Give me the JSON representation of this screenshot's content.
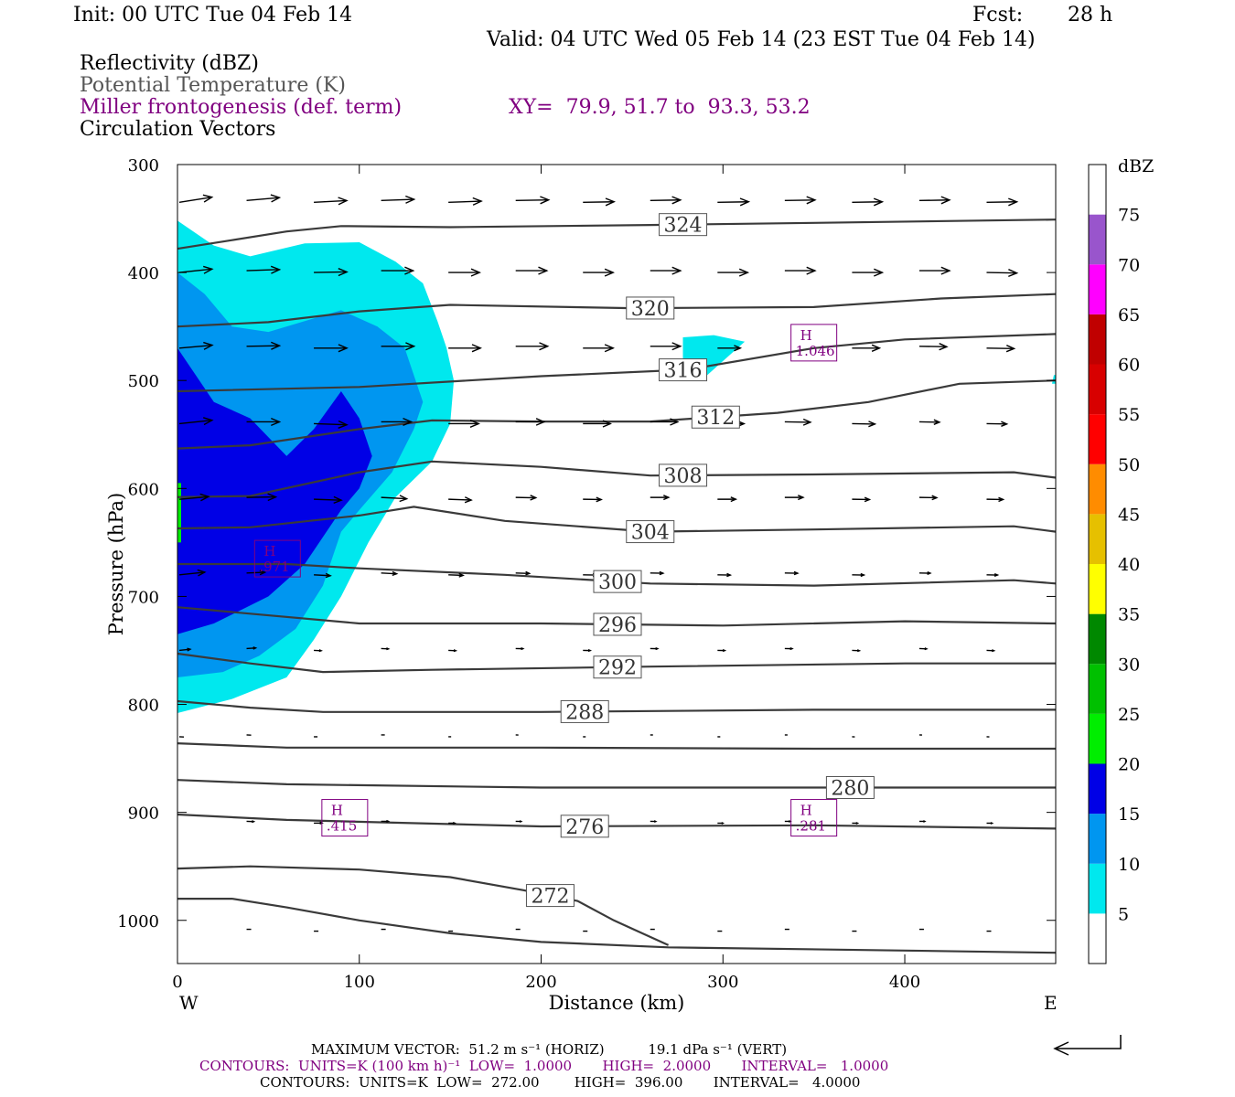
{
  "header": {
    "init": "Init: 00 UTC Tue 04 Feb 14",
    "fcst_label": "Fcst:",
    "fcst_value": "28 h",
    "valid": "Valid: 04 UTC Wed 05 Feb 14 (23 EST Tue 04 Feb 14)",
    "field1": "Reflectivity (dBZ)",
    "field2": "Potential Temperature (K)",
    "field3": "Miller frontogenesis (def. term)",
    "xy": "XY=  79.9, 51.7 to  93.3, 53.2",
    "field4": "Circulation Vectors"
  },
  "footer": {
    "max_vector": "MAXIMUM VECTOR:  51.2 m s⁻¹ (HORIZ)          19.1 dPa s⁻¹ (VERT)",
    "contours1": "CONTOURS:  UNITS=K (100 km h)⁻¹  LOW=  1.0000       HIGH=  2.0000       INTERVAL=   1.0000",
    "contours2": "CONTOURS:  UNITS=K  LOW=  272.00        HIGH=  396.00       INTERVAL=   4.0000"
  },
  "colors": {
    "cyan": "#00e8ee",
    "lightblue": "#0096f0",
    "blue": "#0000e6",
    "contour": "#3a3a3a",
    "purple": "#800080"
  },
  "chart_data": {
    "type": "contour-cross-section",
    "xlabel": "Distance (km)",
    "ylabel": "Pressure (hPa)",
    "xlim": [
      0,
      483
    ],
    "ylim": [
      300,
      1040
    ],
    "x_ticks": [
      0,
      100,
      200,
      300,
      400
    ],
    "y_ticks": [
      300,
      400,
      500,
      600,
      700,
      800,
      900,
      1000
    ],
    "left_end_label": "W",
    "right_end_label": "E",
    "colorbar": {
      "unit": "dBZ",
      "ticks": [
        5,
        10,
        15,
        20,
        25,
        30,
        35,
        40,
        45,
        50,
        55,
        60,
        65,
        70,
        75
      ],
      "colors": [
        "#00e8ee",
        "#0096f0",
        "#0000e6",
        "#00ee00",
        "#00c000",
        "#008800",
        "#ffff00",
        "#e6c000",
        "#ff8c00",
        "#ff0000",
        "#d80000",
        "#c00000",
        "#ff00ff",
        "#9955cc",
        "#ffffff"
      ]
    },
    "theta_contours": [
      {
        "value": 324,
        "points": [
          [
            0,
            378
          ],
          [
            30,
            370
          ],
          [
            60,
            362
          ],
          [
            90,
            357
          ],
          [
            150,
            358
          ],
          [
            260,
            356
          ],
          [
            350,
            354
          ],
          [
            483,
            351
          ]
        ]
      },
      {
        "value": 320,
        "points": [
          [
            0,
            450
          ],
          [
            50,
            446
          ],
          [
            100,
            436
          ],
          [
            150,
            430
          ],
          [
            250,
            433
          ],
          [
            350,
            432
          ],
          [
            420,
            424
          ],
          [
            483,
            420
          ]
        ]
      },
      {
        "value": 316,
        "points": [
          [
            0,
            510
          ],
          [
            100,
            506
          ],
          [
            200,
            496
          ],
          [
            280,
            490
          ],
          [
            350,
            470
          ],
          [
            400,
            462
          ],
          [
            483,
            457
          ]
        ]
      },
      {
        "value": 312,
        "points": [
          [
            0,
            563
          ],
          [
            40,
            560
          ],
          [
            100,
            545
          ],
          [
            140,
            537
          ],
          [
            200,
            538
          ],
          [
            260,
            538
          ],
          [
            330,
            530
          ],
          [
            380,
            520
          ],
          [
            430,
            503
          ],
          [
            483,
            500
          ]
        ]
      },
      {
        "value": 308,
        "points": [
          [
            0,
            608
          ],
          [
            40,
            607
          ],
          [
            100,
            585
          ],
          [
            140,
            575
          ],
          [
            200,
            580
          ],
          [
            260,
            588
          ],
          [
            350,
            587
          ],
          [
            460,
            585
          ],
          [
            483,
            590
          ]
        ]
      },
      {
        "value": 304,
        "points": [
          [
            0,
            637
          ],
          [
            40,
            636
          ],
          [
            100,
            625
          ],
          [
            130,
            617
          ],
          [
            180,
            630
          ],
          [
            260,
            640
          ],
          [
            350,
            638
          ],
          [
            460,
            635
          ],
          [
            483,
            640
          ]
        ]
      },
      {
        "value": 300,
        "points": [
          [
            0,
            670
          ],
          [
            60,
            670
          ],
          [
            100,
            674
          ],
          [
            180,
            680
          ],
          [
            260,
            688
          ],
          [
            350,
            690
          ],
          [
            460,
            685
          ],
          [
            483,
            688
          ]
        ]
      },
      {
        "value": 296,
        "points": [
          [
            0,
            710
          ],
          [
            40,
            716
          ],
          [
            100,
            725
          ],
          [
            200,
            725
          ],
          [
            300,
            727
          ],
          [
            400,
            723
          ],
          [
            483,
            725
          ]
        ]
      },
      {
        "value": 292,
        "points": [
          [
            0,
            753
          ],
          [
            40,
            762
          ],
          [
            80,
            770
          ],
          [
            140,
            768
          ],
          [
            260,
            765
          ],
          [
            400,
            762
          ],
          [
            483,
            762
          ]
        ]
      },
      {
        "value": 288,
        "points": [
          [
            0,
            797
          ],
          [
            40,
            803
          ],
          [
            80,
            807
          ],
          [
            200,
            807
          ],
          [
            350,
            805
          ],
          [
            483,
            805
          ]
        ]
      },
      {
        "value": 284,
        "points": [
          [
            0,
            836
          ],
          [
            60,
            840
          ],
          [
            200,
            840
          ],
          [
            350,
            841
          ],
          [
            483,
            841
          ]
        ]
      },
      {
        "value": 280,
        "points": [
          [
            0,
            870
          ],
          [
            60,
            874
          ],
          [
            200,
            877
          ],
          [
            350,
            877
          ],
          [
            483,
            877
          ]
        ]
      },
      {
        "value": 276,
        "points": [
          [
            0,
            902
          ],
          [
            60,
            907
          ],
          [
            200,
            913
          ],
          [
            350,
            912
          ],
          [
            483,
            915
          ]
        ]
      },
      {
        "value": 272,
        "points": [
          [
            0,
            952
          ],
          [
            40,
            950
          ],
          [
            100,
            953
          ],
          [
            150,
            960
          ],
          [
            190,
            972
          ],
          [
            220,
            982
          ],
          [
            240,
            1000
          ],
          [
            270,
            1023
          ]
        ]
      },
      {
        "value": 272,
        "points": [
          [
            0,
            980
          ],
          [
            30,
            980
          ],
          [
            60,
            988
          ],
          [
            100,
            1000
          ],
          [
            150,
            1012
          ],
          [
            200,
            1020
          ],
          [
            270,
            1025
          ],
          [
            400,
            1028
          ],
          [
            483,
            1030
          ]
        ]
      }
    ],
    "reflectivity_regions": [
      {
        "dbz": 5,
        "polygon": [
          [
            0,
            352
          ],
          [
            20,
            375
          ],
          [
            40,
            385
          ],
          [
            70,
            373
          ],
          [
            100,
            372
          ],
          [
            120,
            390
          ],
          [
            135,
            410
          ],
          [
            143,
            445
          ],
          [
            148,
            470
          ],
          [
            152,
            500
          ],
          [
            150,
            540
          ],
          [
            140,
            575
          ],
          [
            120,
            608
          ],
          [
            105,
            650
          ],
          [
            90,
            700
          ],
          [
            75,
            740
          ],
          [
            60,
            775
          ],
          [
            30,
            795
          ],
          [
            0,
            808
          ]
        ]
      },
      {
        "dbz": 10,
        "polygon": [
          [
            0,
            400
          ],
          [
            15,
            420
          ],
          [
            30,
            450
          ],
          [
            50,
            455
          ],
          [
            70,
            445
          ],
          [
            90,
            435
          ],
          [
            110,
            450
          ],
          [
            125,
            470
          ],
          [
            135,
            520
          ],
          [
            130,
            545
          ],
          [
            118,
            585
          ],
          [
            100,
            620
          ],
          [
            90,
            640
          ],
          [
            80,
            690
          ],
          [
            65,
            730
          ],
          [
            45,
            755
          ],
          [
            25,
            770
          ],
          [
            0,
            775
          ]
        ]
      },
      {
        "dbz": 15,
        "polygon": [
          [
            0,
            470
          ],
          [
            10,
            495
          ],
          [
            20,
            520
          ],
          [
            40,
            535
          ],
          [
            60,
            570
          ],
          [
            75,
            545
          ],
          [
            90,
            510
          ],
          [
            100,
            535
          ],
          [
            107,
            570
          ],
          [
            100,
            600
          ],
          [
            90,
            620
          ],
          [
            70,
            670
          ],
          [
            50,
            700
          ],
          [
            20,
            725
          ],
          [
            0,
            735
          ]
        ]
      },
      {
        "dbz": 20,
        "polygon": [
          [
            0,
            595
          ],
          [
            2,
            595
          ],
          [
            2,
            650
          ],
          [
            0,
            650
          ]
        ]
      },
      {
        "dbz": 5,
        "polygon": [
          [
            278,
            460
          ],
          [
            295,
            458
          ],
          [
            312,
            464
          ],
          [
            304,
            476
          ],
          [
            290,
            497
          ],
          [
            278,
            498
          ]
        ]
      },
      {
        "dbz": 5,
        "polygon": [
          [
            482,
            495
          ],
          [
            483,
            495
          ],
          [
            483,
            503
          ],
          [
            481,
            503
          ]
        ]
      }
    ],
    "extrema_boxes": [
      {
        "label": "H",
        "value": ".971",
        "x": 55,
        "p": 665
      },
      {
        "label": "H",
        "value": "1.046",
        "x": 350,
        "p": 465
      },
      {
        "label": "H",
        "value": ".415",
        "x": 92,
        "p": 905
      },
      {
        "label": "H",
        "value": ".281",
        "x": 350,
        "p": 905
      }
    ],
    "vectors": {
      "x": [
        0,
        37,
        74,
        111,
        148,
        185,
        222,
        259,
        296,
        333,
        370,
        407,
        444,
        481
      ],
      "rows": [
        {
          "p": 335,
          "len": [
            36,
            36,
            36,
            36,
            36,
            36,
            34,
            33,
            34,
            33,
            33,
            33,
            33,
            33
          ],
          "tilt": [
            -9,
            -5,
            -3,
            -2,
            -2,
            -1,
            -1,
            -1,
            -1,
            -1,
            -1,
            -1,
            -1,
            -1
          ]
        },
        {
          "p": 400,
          "len": [
            36,
            36,
            36,
            35,
            34,
            34,
            33,
            33,
            33,
            33,
            33,
            33,
            33,
            33
          ],
          "tilt": [
            -6,
            -2,
            -1,
            0,
            0,
            0,
            0,
            0,
            0,
            0,
            0,
            0,
            1,
            1
          ]
        },
        {
          "p": 470,
          "len": [
            36,
            36,
            36,
            36,
            35,
            35,
            33,
            33,
            25,
            0,
            30,
            30,
            30,
            27
          ],
          "tilt": [
            -5,
            -1,
            0,
            0,
            0,
            0,
            0,
            0,
            0,
            0,
            0,
            1,
            1,
            1
          ]
        },
        {
          "p": 540,
          "len": [
            36,
            36,
            36,
            33,
            33,
            31,
            30,
            30,
            29,
            28,
            25,
            22,
            22,
            22
          ],
          "tilt": [
            -6,
            0,
            2,
            0,
            0,
            0,
            0,
            0,
            0,
            1,
            1,
            1,
            1,
            1
          ]
        },
        {
          "p": 610,
          "len": [
            32,
            32,
            30,
            28,
            25,
            22,
            20,
            20,
            20,
            20,
            19,
            19,
            18,
            18
          ],
          "tilt": [
            -5,
            -1,
            2,
            3,
            2,
            1,
            1,
            0,
            0,
            0,
            1,
            1,
            1,
            0
          ]
        },
        {
          "p": 680,
          "len": [
            28,
            20,
            18,
            17,
            16,
            15,
            15,
            14,
            14,
            14,
            13,
            12,
            12,
            12
          ],
          "tilt": [
            -6,
            -2,
            3,
            3,
            2,
            2,
            1,
            1,
            1,
            1,
            1,
            1,
            1,
            1
          ]
        },
        {
          "p": 750,
          "len": [
            12,
            10,
            8,
            8,
            8,
            8,
            8,
            8,
            8,
            8,
            8,
            8,
            8,
            8
          ],
          "tilt": [
            -6,
            -4,
            2,
            2,
            2,
            1,
            1,
            1,
            1,
            1,
            2,
            2,
            2,
            2
          ]
        },
        {
          "p": 830,
          "len": [
            5,
            5,
            4,
            4,
            3,
            3,
            3,
            3,
            3,
            3,
            3,
            3,
            3,
            3
          ],
          "tilt": [
            3,
            2,
            0,
            -1,
            -1,
            1,
            0,
            0,
            0,
            0,
            1,
            2,
            2,
            2
          ]
        },
        {
          "p": 910,
          "len": [
            0,
            8,
            9,
            8,
            7,
            6,
            6,
            6,
            6,
            6,
            6,
            6,
            6,
            5
          ],
          "tilt": [
            0,
            2,
            -1,
            0,
            0,
            1,
            1,
            1,
            0,
            0,
            0,
            0,
            0,
            0
          ]
        },
        {
          "p": 1010,
          "len": [
            0,
            5,
            5,
            5,
            5,
            5,
            5,
            5,
            5,
            5,
            5,
            5,
            5,
            4
          ],
          "tilt": [
            0,
            0,
            0,
            0,
            0,
            0,
            0,
            0,
            0,
            0,
            0,
            0,
            0,
            0
          ]
        }
      ]
    }
  }
}
